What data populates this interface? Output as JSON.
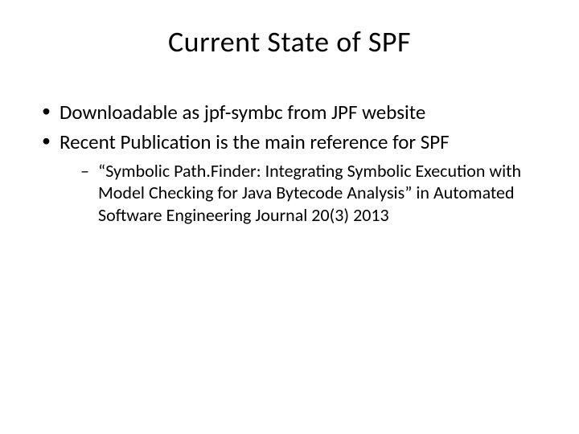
{
  "slide": {
    "title": "Current State of SPF",
    "title_fontsize": 36,
    "title_weight": 400,
    "background_color": "#ffffff",
    "text_color": "#000000",
    "bullets": [
      {
        "text": "Downloadable as jpf-symbc from JPF website",
        "fontsize": 25
      },
      {
        "text": "Recent Publication is the main reference for SPF",
        "fontsize": 25,
        "sub_bullets": [
          {
            "text": "“Symbolic Path.Finder: Integrating Symbolic Execution with Model Checking for Java Bytecode Analysis” in Automated Software Engineering Journal 20(3) 2013",
            "fontsize": 22
          }
        ]
      }
    ],
    "bullet_marker": "•",
    "sub_bullet_marker": "–"
  }
}
